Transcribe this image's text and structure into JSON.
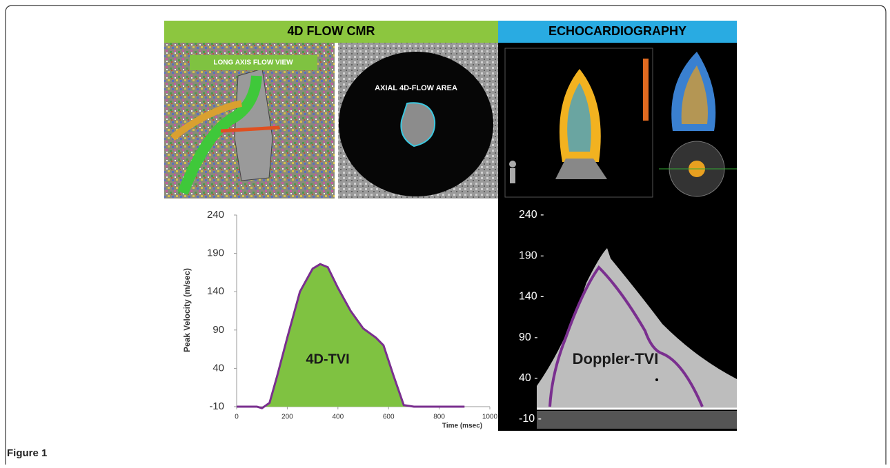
{
  "panels": {
    "left_header": "4D FLOW CMR",
    "right_header": "ECHOCARDIOGRAPHY",
    "long_axis_label": "LONG AXIS FLOW VIEW",
    "axial_label": "AXIAL 4D-FLOW AREA"
  },
  "caption": "Figure 1",
  "chart_data": [
    {
      "type": "area",
      "x_label": "Time (msec)",
      "y_label": "Peak Velocity (m/sec)",
      "xlim": [
        0,
        1000
      ],
      "xticks": [
        0,
        200,
        400,
        600,
        800,
        1000
      ],
      "ylim": [
        -10,
        240
      ],
      "yticks": [
        -10,
        40,
        90,
        140,
        190,
        240
      ],
      "x": [
        0,
        80,
        100,
        130,
        160,
        200,
        250,
        300,
        330,
        360,
        400,
        450,
        500,
        550,
        580,
        620,
        660,
        700,
        900
      ],
      "series": [
        {
          "name": "4D-TVI",
          "color": "#7fc241",
          "line_color": "#7a2f8f",
          "values": [
            -10,
            -10,
            -12,
            -5,
            30,
            80,
            140,
            170,
            176,
            172,
            145,
            115,
            92,
            80,
            70,
            30,
            -8,
            -10,
            -10
          ]
        }
      ]
    },
    {
      "type": "doppler",
      "annotation": "Doppler-TVI",
      "ylim": [
        -10,
        240
      ],
      "yticks": [
        {
          "value": 240,
          "label": "240 -"
        },
        {
          "value": 190,
          "label": "190 -"
        },
        {
          "value": 140,
          "label": "140 -"
        },
        {
          "value": 90,
          "label": "90 -"
        },
        {
          "value": 40,
          "label": "40 -"
        },
        {
          "value": -10,
          "label": "-10 -"
        }
      ]
    }
  ]
}
